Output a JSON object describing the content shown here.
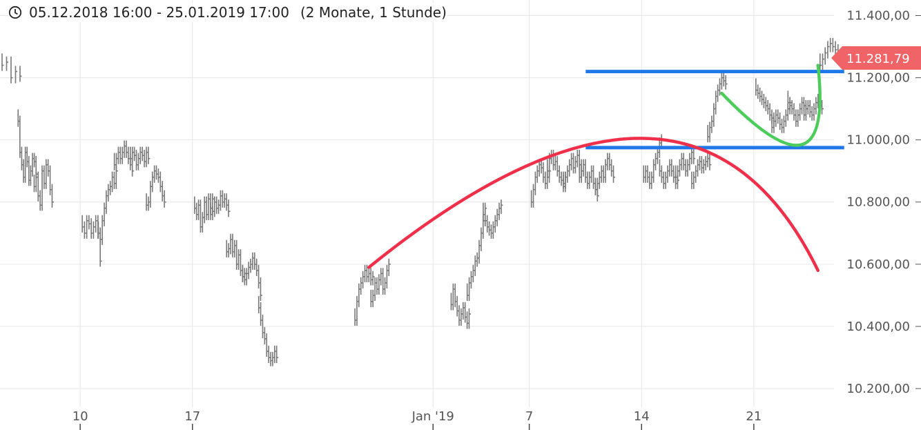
{
  "header": {
    "time_range": "05.12.2018 16:00 - 25.01.2019 17:00",
    "period": "(2 Monate, 1 Stunde)",
    "icon": "clock-icon"
  },
  "price_label": {
    "text": "11.281,79",
    "value": 11281.79,
    "color": "#f06468"
  },
  "colors": {
    "bars": "#777777",
    "grid": "#e6e6e6",
    "resistance_line": "#1e78e8",
    "arc_down": "#f0304a",
    "arc_up": "#4ccc5a",
    "axis_text": "#555555"
  },
  "chart_data": {
    "type": "ohlc",
    "title": "",
    "xlabel": "",
    "ylabel": "",
    "x_range": [
      "2018-12-05",
      "2019-01-25"
    ],
    "ylim": [
      10140,
      11450
    ],
    "y_ticks": [
      {
        "value": 11400,
        "label": "11.400,00"
      },
      {
        "value": 11200,
        "label": "11.200,00"
      },
      {
        "value": 11000,
        "label": "11.000,00"
      },
      {
        "value": 10800,
        "label": "10.800,00"
      },
      {
        "value": 10600,
        "label": "10.600,00"
      },
      {
        "value": 10400,
        "label": "10.400,00"
      },
      {
        "value": 10200,
        "label": "10.200,00"
      }
    ],
    "x_ticks": [
      {
        "date": "2018-12-10",
        "label": "10"
      },
      {
        "date": "2018-12-17",
        "label": "17"
      },
      {
        "date": "2019-01-01",
        "label": "Jan '19"
      },
      {
        "date": "2019-01-07",
        "label": "7"
      },
      {
        "date": "2019-01-14",
        "label": "14"
      },
      {
        "date": "2019-01-21",
        "label": "21"
      }
    ],
    "grid": true,
    "last_value": 11281.79,
    "horizontal_lines": [
      {
        "value": 11220,
        "from": "2019-01-10",
        "to": "2019-01-25"
      },
      {
        "value": 10975,
        "from": "2019-01-10",
        "to": "2019-01-25"
      }
    ],
    "arcs": [
      {
        "name": "arc_down",
        "points": [
          [
            "2018-12-28",
            10590
          ],
          [
            "2019-01-14",
            11005
          ],
          [
            "2019-01-25",
            10580
          ]
        ]
      },
      {
        "name": "arc_up",
        "points": [
          [
            "2019-01-19",
            11150
          ],
          [
            "2019-01-24",
            10985
          ],
          [
            "2019-01-25",
            11240
          ]
        ]
      }
    ],
    "segments": [
      {
        "date": "2018-12-05",
        "points": [
          11240,
          11250,
          11200,
          11220,
          11205
        ]
      },
      {
        "date": "2018-12-06",
        "points": [
          11060,
          10960,
          10920,
          10880,
          10960,
          10930,
          10870,
          10900,
          10940,
          10930,
          10890
        ]
      },
      {
        "date": "2018-12-07",
        "points": [
          10850,
          10880,
          10820,
          10790,
          10900,
          10860,
          10920,
          10900,
          10840,
          10800
        ]
      },
      {
        "date": "2018-12-10",
        "points": [
          10720,
          10700,
          10740,
          10730,
          10700,
          10720,
          10740,
          10700,
          10610
        ]
      },
      {
        "date": "2018-12-11",
        "points": [
          10700,
          10680,
          10740,
          10780,
          10820,
          10840,
          10850,
          10880,
          10860,
          10900
        ]
      },
      {
        "date": "2018-12-12",
        "points": [
          10920,
          10940,
          10960,
          10940,
          10960,
          10980,
          10960,
          10940,
          10920,
          10900
        ]
      },
      {
        "date": "2018-12-13",
        "points": [
          10940,
          10960,
          10950,
          10920,
          10940,
          10960,
          10950,
          10930,
          10960,
          10940
        ]
      },
      {
        "date": "2018-12-14",
        "points": [
          10790,
          10800,
          10850,
          10880,
          10900,
          10890,
          10880,
          10850,
          10820,
          10800
        ]
      },
      {
        "date": "2018-12-17",
        "points": [
          10780,
          10760,
          10790,
          10720,
          10750,
          10800,
          10760,
          10810,
          10780,
          10810
        ]
      },
      {
        "date": "2018-12-18",
        "points": [
          10760,
          10770,
          10800,
          10780,
          10790,
          10820,
          10800,
          10810,
          10790,
          10770
        ]
      },
      {
        "date": "2018-12-19",
        "points": [
          10640,
          10650,
          10680,
          10640,
          10660,
          10600,
          10630,
          10580,
          10560,
          10570
        ]
      },
      {
        "date": "2018-12-20",
        "points": [
          10560,
          10550,
          10570,
          10590,
          10600,
          10620,
          10600,
          10580,
          10540,
          10500
        ]
      },
      {
        "date": "2018-12-21",
        "points": [
          10460,
          10420,
          10380,
          10360,
          10320,
          10300,
          10290,
          10300,
          10320,
          10300
        ]
      },
      {
        "date": "2018-12-27",
        "points": [
          10420,
          10480,
          10520,
          10540,
          10560,
          10580,
          10560,
          10570,
          10550,
          10560
        ]
      },
      {
        "date": "2018-12-28",
        "points": [
          10480,
          10500,
          10540,
          10520,
          10550,
          10570,
          10520,
          10540,
          10580,
          10600
        ]
      },
      {
        "date": "2019-01-02",
        "points": [
          10470,
          10520,
          10480,
          10450,
          10420,
          10440,
          10460,
          10430,
          10410,
          10440
        ]
      },
      {
        "date": "2019-01-03",
        "points": [
          10500,
          10540,
          10560,
          10580,
          10610,
          10620,
          10660,
          10700,
          10740,
          10780
        ]
      },
      {
        "date": "2019-01-04",
        "points": [
          10760,
          10740,
          10720,
          10710,
          10700,
          10720,
          10740,
          10760,
          10780,
          10790
        ]
      },
      {
        "date": "2019-01-07",
        "points": [
          10800,
          10840,
          10880,
          10900,
          10920,
          10910,
          10880,
          10860,
          10880,
          10900
        ]
      },
      {
        "date": "2019-01-08",
        "points": [
          10900,
          10940,
          10950,
          10920,
          10930,
          10900,
          10880,
          10870,
          10850,
          10880
        ]
      },
      {
        "date": "2019-01-09",
        "points": [
          10860,
          10880,
          10900,
          10920,
          10940,
          10910,
          10930,
          10950,
          10920,
          10900
        ]
      },
      {
        "date": "2019-01-10",
        "points": [
          10880,
          10900,
          10920,
          10880,
          10860,
          10880,
          10900,
          10860,
          10840,
          10820
        ]
      },
      {
        "date": "2019-01-11",
        "points": [
          10840,
          10860,
          10880,
          10900,
          10880,
          10920,
          10940,
          10920,
          10900,
          10880
        ]
      },
      {
        "date": "2019-01-14",
        "points": [
          10880,
          10900,
          10880,
          10860,
          10880,
          10920,
          10940,
          10960,
          10990,
          11000
        ]
      },
      {
        "date": "2019-01-15",
        "points": [
          10900,
          10880,
          10860,
          10880,
          10900,
          10920,
          10900,
          10880,
          10860,
          10870
        ]
      },
      {
        "date": "2019-01-16",
        "points": [
          10880,
          10900,
          10920,
          10940,
          10920,
          10900,
          10920,
          10940,
          10960,
          10940
        ]
      },
      {
        "date": "2019-01-17",
        "points": [
          10860,
          10880,
          10900,
          10920,
          10930,
          10910,
          10920,
          10930,
          10940,
          10920
        ]
      },
      {
        "date": "2019-01-18",
        "points": [
          11010,
          11040,
          11060,
          11100,
          11140,
          11160,
          11180,
          11200,
          11190,
          11180
        ]
      },
      {
        "date": "2019-01-21",
        "points": [
          11160,
          11150,
          11140,
          11130,
          11120,
          11110,
          11100,
          11080,
          11070,
          11060
        ]
      },
      {
        "date": "2019-01-22",
        "points": [
          11040,
          11060,
          11080,
          11070,
          11050,
          11040,
          11060,
          11080,
          11100,
          11120
        ]
      },
      {
        "date": "2019-01-23",
        "points": [
          11120,
          11110,
          11100,
          11080,
          11060,
          11080,
          11100,
          11120,
          11110,
          11100
        ]
      },
      {
        "date": "2019-01-24",
        "points": [
          11080,
          11100,
          11110,
          11090,
          11080,
          11100,
          11120,
          11130,
          11110,
          11100
        ]
      },
      {
        "date": "2019-01-25",
        "points": [
          11240,
          11260,
          11280,
          11300,
          11310,
          11300,
          11290,
          11280
        ]
      }
    ]
  }
}
